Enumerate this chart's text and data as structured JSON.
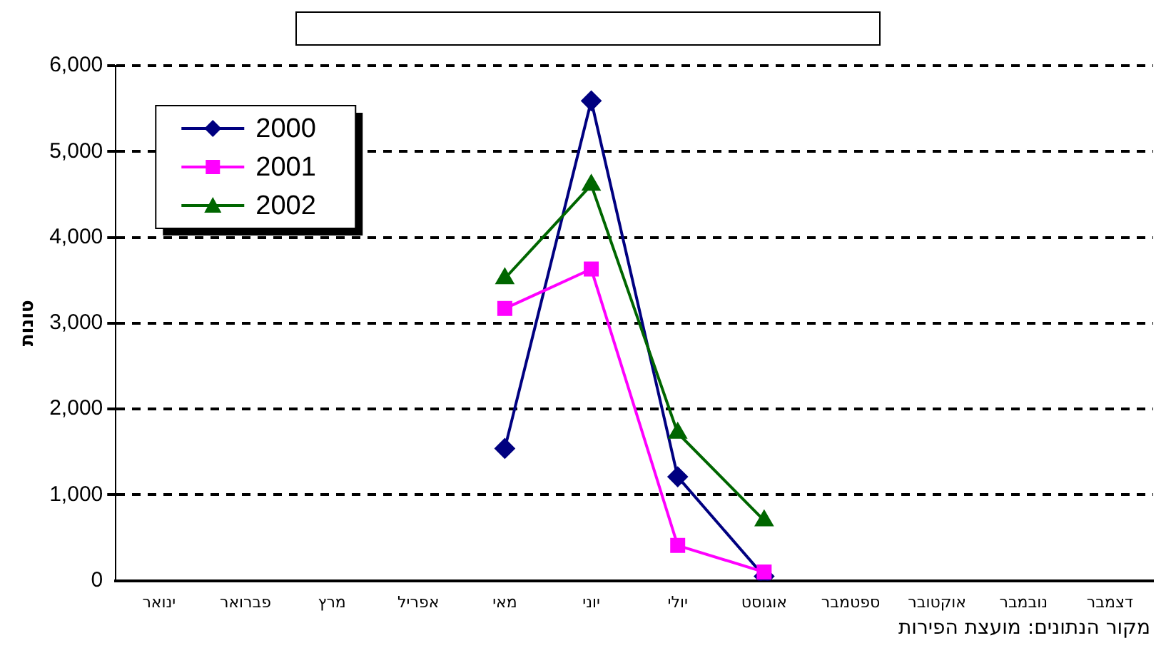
{
  "chart_data": {
    "type": "line",
    "ylabel": "טונות",
    "categories": [
      "ינואר",
      "פברואר",
      "מרץ",
      "אפריל",
      "מאי",
      "יוני",
      "יולי",
      "אוגוסט",
      "ספטמבר",
      "אוקטובר",
      "נובמבר",
      "דצמבר"
    ],
    "series": [
      {
        "name": "2000",
        "color": "#000080",
        "marker": "diamond",
        "values": [
          null,
          null,
          null,
          null,
          1540,
          5590,
          1210,
          50,
          null,
          null,
          null,
          null
        ]
      },
      {
        "name": "2001",
        "color": "#ff00ff",
        "marker": "square",
        "values": [
          null,
          null,
          null,
          null,
          3170,
          3630,
          410,
          100,
          null,
          null,
          null,
          null
        ]
      },
      {
        "name": "2002",
        "color": "#006600",
        "marker": "triangle",
        "values": [
          null,
          null,
          null,
          null,
          3520,
          4610,
          1720,
          700,
          null,
          null,
          null,
          null
        ]
      }
    ],
    "ylim": [
      0,
      6000
    ],
    "yticks": [
      0,
      {
        "value": 1000,
        "label": "1,000"
      },
      {
        "value": 2000,
        "label": "2,000"
      },
      {
        "value": 3000,
        "label": "3,000"
      },
      {
        "value": 4000,
        "label": "4,000"
      },
      {
        "value": 5000,
        "label": "5,000"
      },
      {
        "value": 6000,
        "label": "6,000"
      }
    ],
    "grid": "y",
    "legend": "top left",
    "annotations": [
      "מקור הנתונים: מועצת הפירות"
    ]
  }
}
